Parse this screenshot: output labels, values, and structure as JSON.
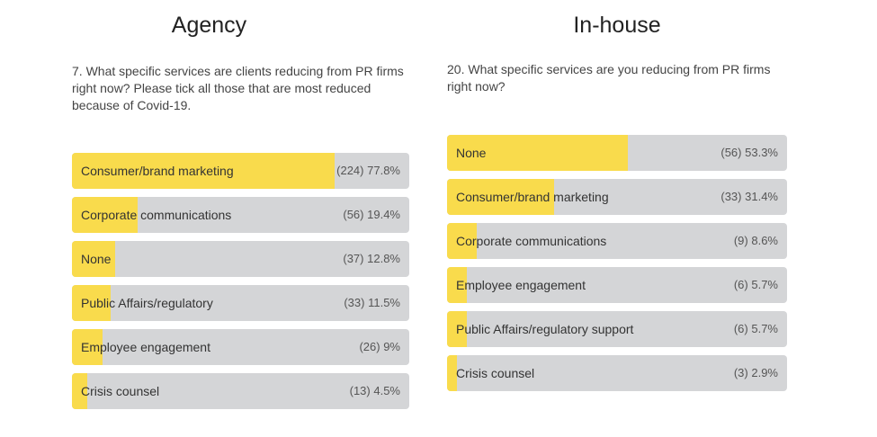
{
  "chart_data": [
    {
      "type": "bar",
      "title": "Agency",
      "subtitle": "7. What specific services are clients reducing from PR firms right now? Please tick all those that are most reduced because of Covid-19.",
      "categories": [
        "Consumer/brand marketing",
        "Corporate communications",
        "None",
        "Public Affairs/regulatory",
        "Employee engagement",
        "Crisis counsel"
      ],
      "counts": [
        "(224)",
        "(56)",
        "(37)",
        "(33)",
        "(26)",
        "(13)"
      ],
      "percent_labels": [
        "77.8%",
        "19.4%",
        "12.8%",
        "11.5%",
        "9%",
        "4.5%"
      ],
      "values": [
        77.8,
        19.4,
        12.8,
        11.5,
        9,
        4.5
      ],
      "xlim": [
        0,
        100
      ],
      "colors": {
        "fill": "#f9db4c",
        "track": "#d4d5d7"
      }
    },
    {
      "type": "bar",
      "title": "In-house",
      "subtitle": "20. What specific services are you reducing from PR firms right now?",
      "categories": [
        "None",
        "Consumer/brand marketing",
        "Corporate communications",
        "Employee engagement",
        "Public Affairs/regulatory support",
        "Crisis counsel"
      ],
      "counts": [
        "(56)",
        "(33)",
        "(9)",
        "(6)",
        "(6)",
        "(3)"
      ],
      "percent_labels": [
        "53.3%",
        "31.4%",
        "8.6%",
        "5.7%",
        "5.7%",
        "2.9%"
      ],
      "values": [
        53.3,
        31.4,
        8.6,
        5.7,
        5.7,
        2.9
      ],
      "xlim": [
        0,
        100
      ],
      "colors": {
        "fill": "#f9db4c",
        "track": "#d4d5d7"
      }
    }
  ]
}
